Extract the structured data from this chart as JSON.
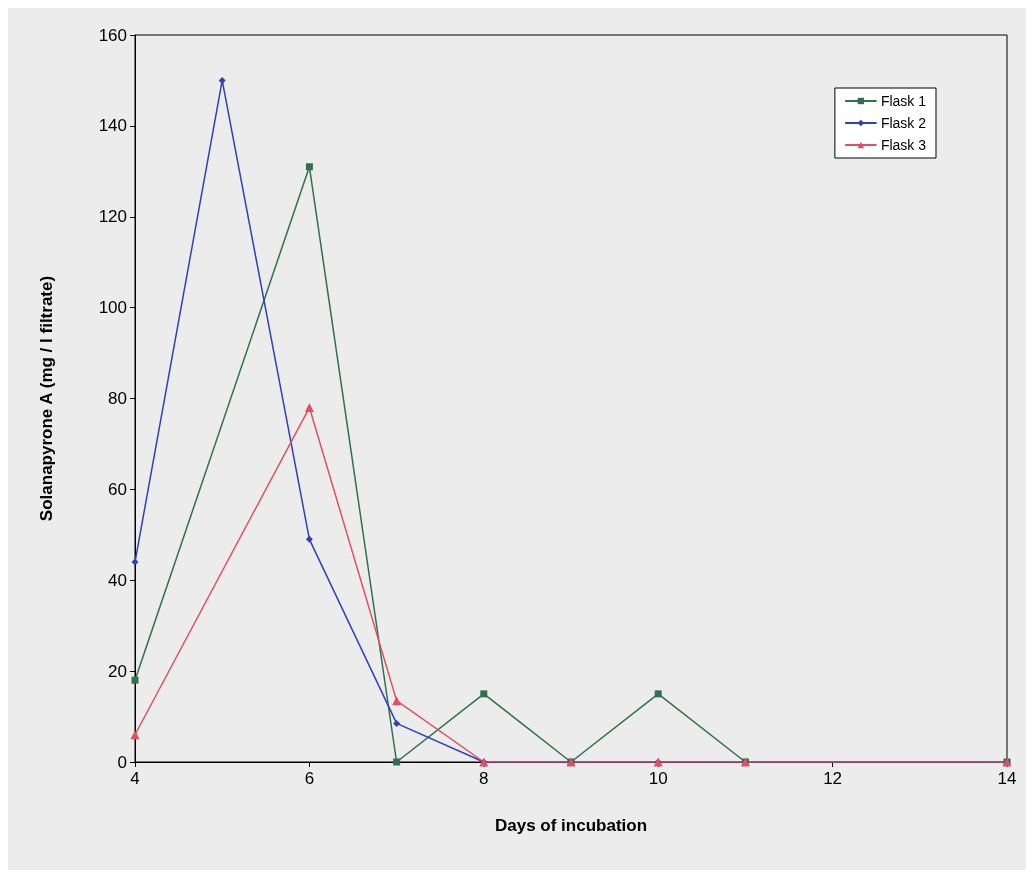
{
  "chart_data": {
    "type": "line",
    "xlabel": "Days of incubation",
    "ylabel": "Solanapyrone A (mg / l filtrate)",
    "xlim": [
      4,
      14
    ],
    "xticks": [
      4,
      6,
      8,
      10,
      12,
      14
    ],
    "ylim": [
      0,
      160
    ],
    "yticks": [
      0,
      20,
      40,
      60,
      80,
      100,
      120,
      140,
      160
    ],
    "grid": false,
    "legend": "top right",
    "series": [
      {
        "name": "Flask 1",
        "color": "#2e7050",
        "marker": "square",
        "x": [
          4,
          6,
          7,
          8,
          9,
          10,
          11,
          14
        ],
        "values": [
          18,
          131,
          0,
          15,
          0,
          15,
          0,
          0
        ]
      },
      {
        "name": "Flask 2",
        "color": "#3040b8",
        "marker": "diamond",
        "x": [
          4,
          5,
          6,
          7,
          8,
          9,
          10,
          11,
          14
        ],
        "values": [
          44,
          150,
          49,
          8.5,
          0,
          0,
          0,
          0,
          0
        ]
      },
      {
        "name": "Flask 3",
        "color": "#e05060",
        "marker": "triangle",
        "x": [
          4,
          6,
          7,
          8,
          9,
          10,
          11,
          14
        ],
        "values": [
          6,
          78,
          13.5,
          0,
          0,
          0,
          0,
          0
        ]
      }
    ]
  }
}
